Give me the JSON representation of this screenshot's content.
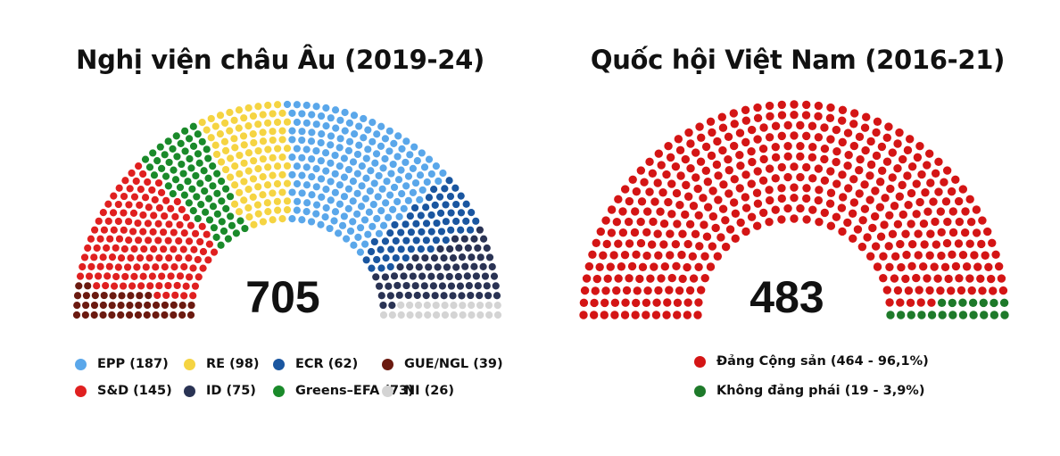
{
  "chart_data": [
    {
      "type": "parliament",
      "title": "Nghị viện châu Âu (2019-24)",
      "total": "705",
      "series": [
        {
          "name": "GUE/NGL (39)",
          "label": "GUE/NGL",
          "value": 39,
          "color": "#6b1a10"
        },
        {
          "name": "S&D (145)",
          "label": "S&D",
          "value": 145,
          "color": "#e02020"
        },
        {
          "name": "Greens–EFA (73)",
          "label": "Greens–EFA",
          "value": 73,
          "color": "#1a8a2a"
        },
        {
          "name": "RE (98)",
          "label": "RE",
          "value": 98,
          "color": "#f5d442"
        },
        {
          "name": "EPP (187)",
          "label": "EPP",
          "value": 187,
          "color": "#5aa7ea"
        },
        {
          "name": "ECR (62)",
          "label": "ECR",
          "value": 62,
          "color": "#1a56a0"
        },
        {
          "name": "ID (75)",
          "label": "ID",
          "value": 75,
          "color": "#2a3354"
        },
        {
          "name": "NI (26)",
          "label": "NI",
          "value": 26,
          "color": "#d4d4d4"
        }
      ],
      "legend_order": [
        4,
        3,
        5,
        0,
        1,
        6,
        2,
        7
      ]
    },
    {
      "type": "parliament",
      "title": "Quốc hội Việt Nam (2016-21)",
      "total": "483",
      "series": [
        {
          "name": "Đảng Cộng sản (464 - 96,1%)",
          "label": "Đảng Cộng sản",
          "value": 464,
          "percent": 96.1,
          "color": "#d41515"
        },
        {
          "name": "Không đảng phái (19 - 3,9%)",
          "label": "Không đảng phái",
          "value": 19,
          "percent": 3.9,
          "color": "#1e7a2a"
        }
      ],
      "legend_order": [
        0,
        1
      ]
    }
  ]
}
